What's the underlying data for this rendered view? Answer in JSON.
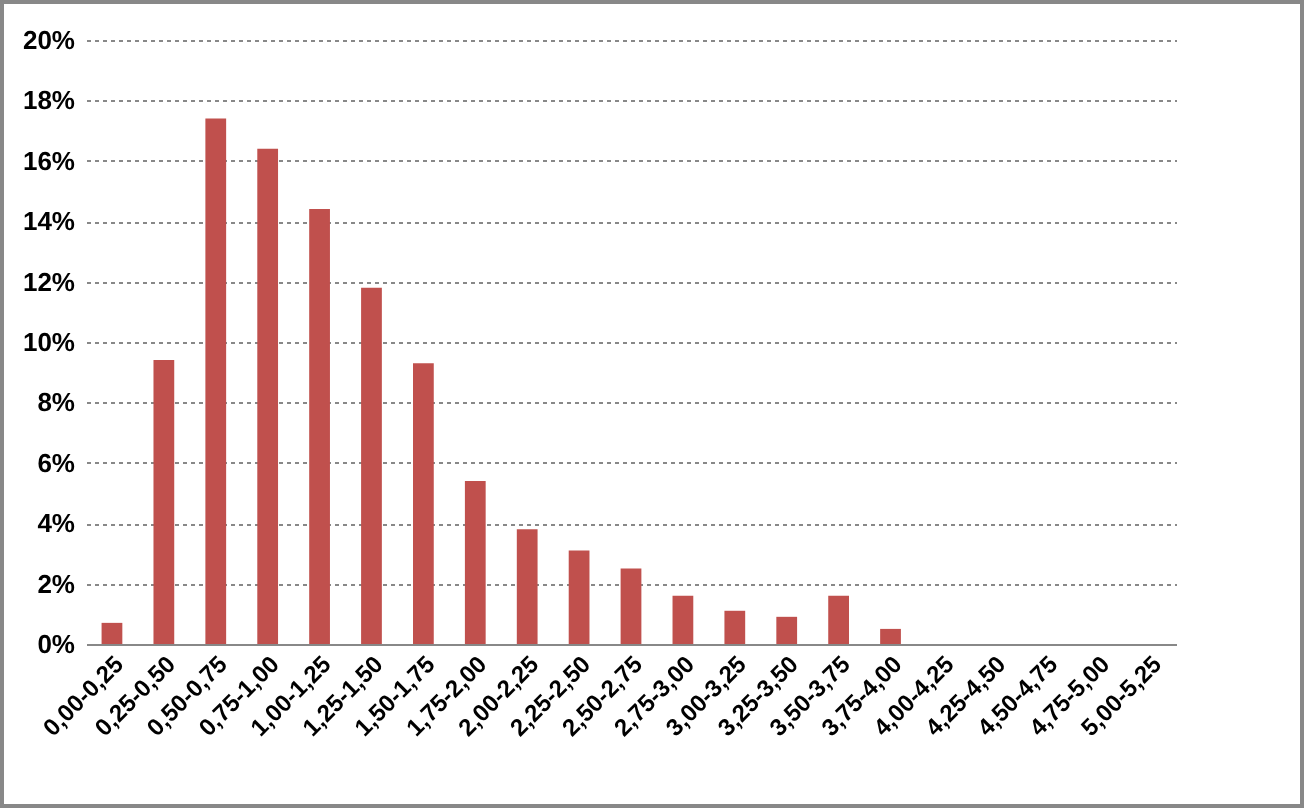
{
  "chart_data": {
    "type": "bar",
    "categories": [
      "0,00-0,25",
      "0,25-0,50",
      "0,50-0,75",
      "0,75-1,00",
      "1,00-1,25",
      "1,25-1,50",
      "1,50-1,75",
      "1,75-2,00",
      "2,00-2,25",
      "2,25-2,50",
      "2,50-2,75",
      "2,75-3,00",
      "3,00-3,25",
      "3,25-3,50",
      "3,50-3,75",
      "3,75-4,00",
      "4,00-4,25",
      "4,25-4,50",
      "4,50-4,75",
      "4,75-5,00",
      "5,00-5,25"
    ],
    "values": [
      0.7,
      9.4,
      17.4,
      16.4,
      14.4,
      11.8,
      9.3,
      5.4,
      3.8,
      3.1,
      2.5,
      1.6,
      1.1,
      0.9,
      1.6,
      0.5,
      0,
      0,
      0,
      0,
      0
    ],
    "color": "#c0504d",
    "ylim": [
      0,
      20
    ],
    "yticks": [
      {
        "value": 0,
        "label": "0%"
      },
      {
        "value": 2,
        "label": "2%"
      },
      {
        "value": 4,
        "label": "4%"
      },
      {
        "value": 6,
        "label": "6%"
      },
      {
        "value": 8,
        "label": "8%"
      },
      {
        "value": 10,
        "label": "10%"
      },
      {
        "value": 12,
        "label": "12%"
      },
      {
        "value": 14,
        "label": "14%"
      },
      {
        "value": 16,
        "label": "16%"
      },
      {
        "value": 18,
        "label": "18%"
      },
      {
        "value": 20,
        "label": "20%"
      }
    ],
    "grid": "y"
  }
}
